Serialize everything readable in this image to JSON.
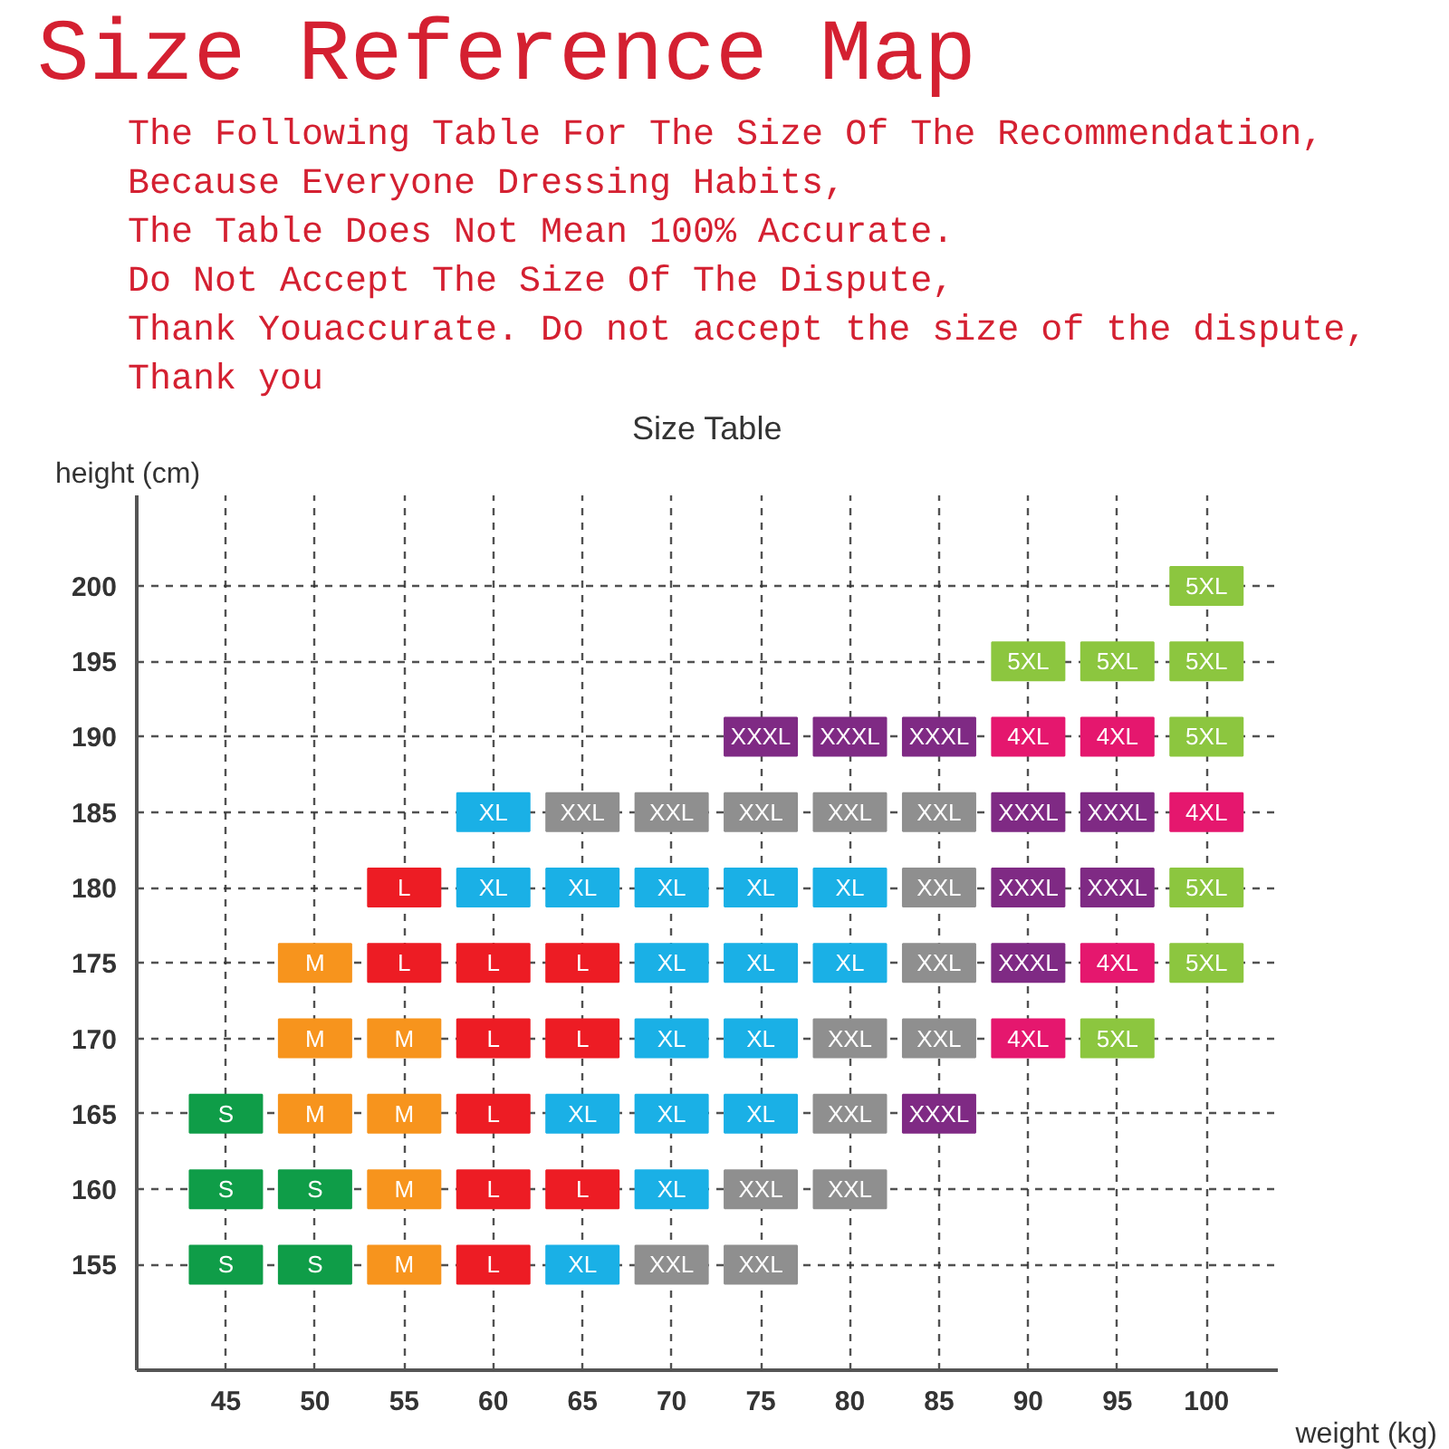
{
  "chart_data": {
    "type": "scatter",
    "title": "Size Reference Map",
    "subtitle": "Size Table",
    "annotations": [
      "The Following Table For The Size Of The Recommendation,",
      "Because Everyone Dressing Habits,",
      "The Table Does Not Mean 100% Accurate.",
      "Do Not Accept The Size Of The Dispute,",
      "Thank Youaccurate. Do not accept the size of the dispute,",
      "Thank you"
    ],
    "xlabel": "weight (kg)",
    "ylabel": "height (cm)",
    "xlim": [
      40,
      104
    ],
    "ylim": [
      148,
      206
    ],
    "xticks": [
      45,
      50,
      55,
      60,
      65,
      70,
      75,
      80,
      85,
      90,
      95,
      100
    ],
    "yticks": [
      155,
      160,
      165,
      170,
      175,
      180,
      185,
      190,
      195,
      200
    ],
    "grid": true,
    "marker": "square",
    "series": [
      {
        "name": "S",
        "color": "#0f9d48",
        "x": [
          45,
          45,
          50,
          45,
          50
        ],
        "values": [
          165,
          160,
          160,
          155,
          155
        ]
      },
      {
        "name": "M",
        "color": "#f7941d",
        "x": [
          50,
          50,
          55,
          50,
          55,
          55,
          55
        ],
        "values": [
          175,
          170,
          170,
          165,
          165,
          160,
          155
        ]
      },
      {
        "name": "L",
        "color": "#ed1c24",
        "x": [
          55,
          55,
          60,
          65,
          60,
          65,
          60,
          60,
          65,
          60
        ],
        "values": [
          180,
          175,
          175,
          175,
          170,
          170,
          165,
          160,
          160,
          155
        ]
      },
      {
        "name": "XL",
        "color": "#1ab0e6",
        "x": [
          60,
          60,
          65,
          70,
          75,
          80,
          70,
          75,
          80,
          70,
          75,
          65,
          70,
          75,
          70,
          65
        ],
        "values": [
          185,
          180,
          180,
          180,
          180,
          180,
          175,
          175,
          175,
          170,
          170,
          165,
          165,
          165,
          160,
          155
        ]
      },
      {
        "name": "XXL",
        "color": "#8f8f8f",
        "x": [
          65,
          70,
          75,
          80,
          85,
          85,
          85,
          80,
          85,
          80,
          75,
          80,
          70,
          75
        ],
        "values": [
          185,
          185,
          185,
          185,
          185,
          180,
          175,
          170,
          170,
          165,
          160,
          160,
          155,
          155
        ]
      },
      {
        "name": "XXXL",
        "color": "#7f2a84",
        "x": [
          75,
          80,
          85,
          90,
          95,
          90,
          95,
          90,
          85
        ],
        "values": [
          190,
          190,
          190,
          185,
          185,
          180,
          180,
          175,
          165
        ]
      },
      {
        "name": "4XL",
        "color": "#e5176e",
        "x": [
          90,
          95,
          100,
          95,
          90
        ],
        "values": [
          190,
          190,
          185,
          175,
          170
        ]
      },
      {
        "name": "5XL",
        "color": "#8cc63f",
        "x": [
          100,
          90,
          95,
          100,
          100,
          100,
          100,
          95
        ],
        "values": [
          200,
          195,
          195,
          195,
          190,
          180,
          175,
          170
        ]
      }
    ]
  }
}
